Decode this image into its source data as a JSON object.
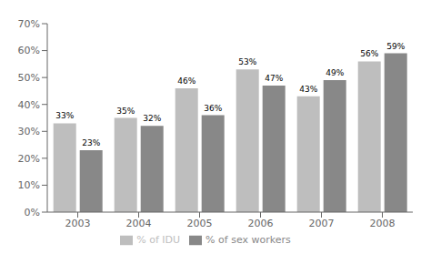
{
  "chart_data": {
    "type": "bar",
    "categories": [
      "2003",
      "2004",
      "2005",
      "2006",
      "2007",
      "2008"
    ],
    "series": [
      {
        "name": "% of IDU",
        "color": "#bebebe",
        "values": [
          33,
          35,
          46,
          53,
          43,
          56
        ],
        "value_labels": [
          "33%",
          "35%",
          "46%",
          "53%",
          "43%",
          "56%"
        ]
      },
      {
        "name": "% of sex workers",
        "color": "#888888",
        "values": [
          23,
          32,
          36,
          47,
          49,
          59
        ],
        "value_labels": [
          "23%",
          "32%",
          "36%",
          "47%",
          "49%",
          "59%"
        ]
      }
    ],
    "ylim": [
      0,
      70
    ],
    "yticks": [
      {
        "value": 0,
        "label": "0%"
      },
      {
        "value": 10,
        "label": "10%"
      },
      {
        "value": 20,
        "label": "20%"
      },
      {
        "value": 30,
        "label": "30%"
      },
      {
        "value": 40,
        "label": "40%"
      },
      {
        "value": 50,
        "label": "50%"
      },
      {
        "value": 60,
        "label": "60%"
      },
      {
        "value": 70,
        "label": "70%"
      }
    ],
    "grid": false,
    "legend": "bottom",
    "data_labels": true
  }
}
